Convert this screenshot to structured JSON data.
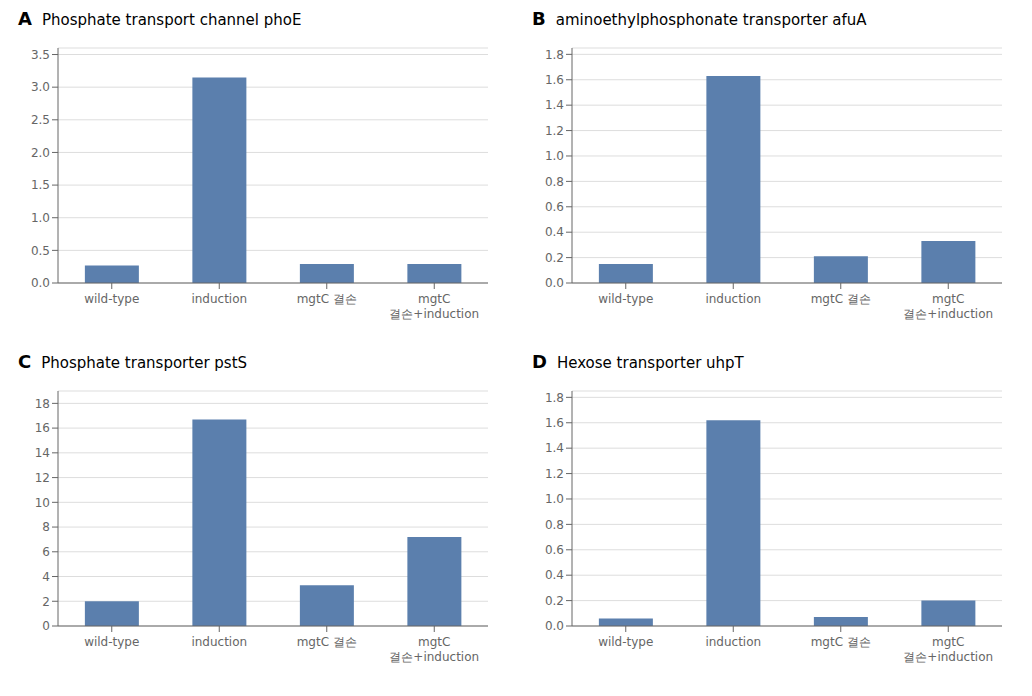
{
  "chart_data": [
    {
      "type": "bar",
      "title": "Phosphate transport channel phoE",
      "annotations": [
        "A"
      ],
      "categories": [
        "wild-type",
        "induction",
        "mgtC 결손",
        "mgtC\n결손+induction"
      ],
      "values": [
        0.27,
        3.15,
        0.29,
        0.29
      ],
      "color": "#5b7fad",
      "ylim": [
        0,
        3.6
      ],
      "yticks": [
        {
          "value": 0,
          "label": "0.0"
        },
        0.5,
        {
          "value": 1.0,
          "label": "1.0"
        },
        1.5,
        {
          "value": 2.0,
          "label": "2.0"
        },
        2.5,
        {
          "value": 3.0,
          "label": "3.0"
        },
        3.5
      ],
      "grid": true
    },
    {
      "type": "bar",
      "title": "aminoethylphosphonate transporter afuA",
      "annotations": [
        "B"
      ],
      "categories": [
        "wild-type",
        "induction",
        "mgtC 결손",
        "mgtC\n결손+induction"
      ],
      "values": [
        0.15,
        1.63,
        0.21,
        0.33
      ],
      "color": "#5b7fad",
      "ylim": [
        0,
        1.85
      ],
      "yticks": [
        {
          "value": 0,
          "label": "0.0"
        },
        0.2,
        0.4,
        0.6,
        0.8,
        {
          "value": 1.0,
          "label": "1.0"
        },
        1.2,
        1.4,
        1.6,
        1.8
      ],
      "grid": true
    },
    {
      "type": "bar",
      "title": "Phosphate transporter pstS",
      "annotations": [
        "C"
      ],
      "categories": [
        "wild-type",
        "induction",
        "mgtC 결손",
        "mgtC\n결손+induction"
      ],
      "values": [
        2.0,
        16.7,
        3.3,
        7.2
      ],
      "color": "#5b7fad",
      "ylim": [
        0,
        19
      ],
      "yticks": [
        0,
        2,
        4,
        6,
        8,
        10,
        12,
        14,
        16,
        18
      ],
      "grid": true
    },
    {
      "type": "bar",
      "title": "Hexose transporter uhpT",
      "annotations": [
        "D"
      ],
      "categories": [
        "wild-type",
        "induction",
        "mgtC 결손",
        "mgtC\n결손+induction"
      ],
      "values": [
        0.06,
        1.62,
        0.07,
        0.2
      ],
      "color": "#5b7fad",
      "ylim": [
        0,
        1.85
      ],
      "yticks": [
        {
          "value": 0,
          "label": "0.0"
        },
        0.2,
        0.4,
        0.6,
        0.8,
        {
          "value": 1.0,
          "label": "1.0"
        },
        1.2,
        1.4,
        1.6,
        1.8
      ],
      "grid": true
    }
  ]
}
